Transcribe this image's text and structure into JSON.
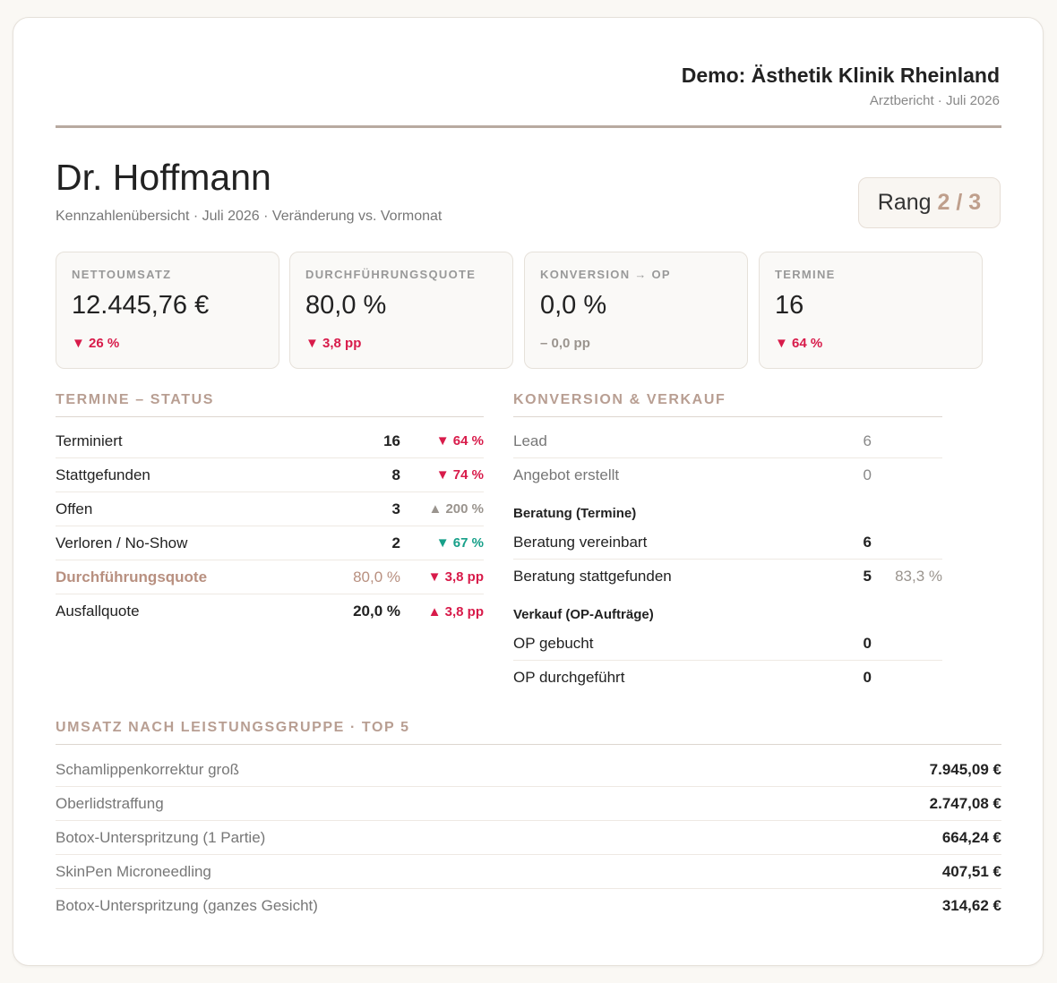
{
  "header": {
    "clinic": "Demo: Ästhetik Klinik Rheinland",
    "subtitle": "Arztbericht · Juli 2026"
  },
  "doctor": {
    "name": "Dr. Hoffmann",
    "subtitle": "Kennzahlenübersicht · Juli 2026 · Veränderung vs. Vormonat",
    "rank_label": "Rang",
    "rank_value": "2 / 3"
  },
  "kpis": [
    {
      "label": "NETTOUMSATZ",
      "value": "12.445,76 €",
      "change": "▼ 26 %",
      "tone": "red"
    },
    {
      "label": "DURCHFÜHRUNGSQUOTE",
      "value": "80,0 %",
      "change": "▼ 3,8 pp",
      "tone": "red"
    },
    {
      "label": "KONVERSION → OP",
      "value": "0,0 %",
      "change": "– 0,0 pp",
      "tone": "grey"
    },
    {
      "label": "TERMINE",
      "value": "16",
      "change": "▼ 64 %",
      "tone": "red"
    }
  ],
  "termine": {
    "title": "TERMINE – STATUS",
    "rows": [
      {
        "label": "Terminiert",
        "value": "16",
        "change": "▼ 64 %",
        "tone": "red"
      },
      {
        "label": "Stattgefunden",
        "value": "8",
        "change": "▼ 74 %",
        "tone": "red"
      },
      {
        "label": "Offen",
        "value": "3",
        "change": "▲ 200 %",
        "tone": "grey"
      },
      {
        "label": "Verloren / No-Show",
        "value": "2",
        "change": "▼ 67 %",
        "tone": "green"
      },
      {
        "label": "Durchführungsquote",
        "value": "80,0 %",
        "change": "▼ 3,8 pp",
        "tone": "red"
      },
      {
        "label": "Ausfallquote",
        "value": "20,0 %",
        "change": "▲ 3,8 pp",
        "tone": "red"
      }
    ]
  },
  "konversion": {
    "title": "KONVERSION & VERKAUF",
    "top_rows": [
      {
        "label": "Lead",
        "value": "6"
      },
      {
        "label": "Angebot erstellt",
        "value": "0"
      }
    ],
    "beratung_title": "Beratung (Termine)",
    "beratung_rows": [
      {
        "label": "Beratung vereinbart",
        "value": "6",
        "pct": ""
      },
      {
        "label": "Beratung stattgefunden",
        "value": "5",
        "pct": "83,3 %"
      }
    ],
    "verkauf_title": "Verkauf (OP-Aufträge)",
    "verkauf_rows": [
      {
        "label": "OP gebucht",
        "value": "0"
      },
      {
        "label": "OP durchgeführt",
        "value": "0"
      }
    ]
  },
  "umsatz": {
    "title": "UMSATZ NACH LEISTUNGSGRUPPE · TOP 5",
    "rows": [
      {
        "label": "Schamlippenkorrektur groß",
        "value": "7.945,09 €"
      },
      {
        "label": "Oberlidstraffung",
        "value": "2.747,08 €"
      },
      {
        "label": "Botox-Unterspritzung (1 Partie)",
        "value": "664,24 €"
      },
      {
        "label": "SkinPen Microneedling",
        "value": "407,51 €"
      },
      {
        "label": "Botox-Unterspritzung (ganzes Gesicht)",
        "value": "314,62 €"
      }
    ]
  },
  "colors": {
    "accent": "#b89e92",
    "negative": "#d81b4a",
    "positive": "#17a089",
    "neutral": "#9a948e"
  }
}
